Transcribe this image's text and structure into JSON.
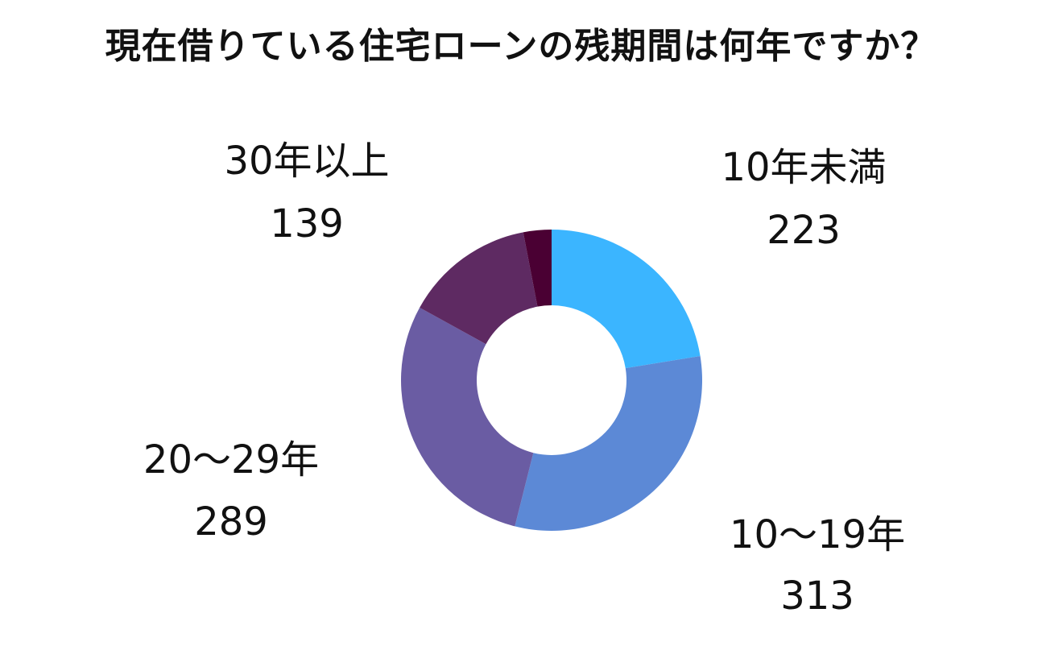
{
  "title": "現在借りている住宅ローンの残期間は何年ですか？",
  "colors": {
    "background": "#ffffff",
    "text": "#111111",
    "slices": [
      "#3BB5FF",
      "#5C89D6",
      "#6A5CA3",
      "#5E2A62",
      "#4A0033"
    ]
  },
  "chart_data": {
    "type": "pie",
    "variant": "donut",
    "title": "現在借りている住宅ローンの残期間は何年ですか？",
    "start_angle": "12 o'clock",
    "direction": "clockwise",
    "legend": "none",
    "categories": [
      "10年未満",
      "10〜19年",
      "20〜29年",
      "30年以上",
      ""
    ],
    "values": [
      223,
      313,
      289,
      139,
      30
    ],
    "data_labels": [
      {
        "category": "10年未満",
        "value": "223"
      },
      {
        "category": "10〜19年",
        "value": "313"
      },
      {
        "category": "20〜29年",
        "value": "289"
      },
      {
        "category": "30年以上",
        "value": "139"
      }
    ]
  }
}
